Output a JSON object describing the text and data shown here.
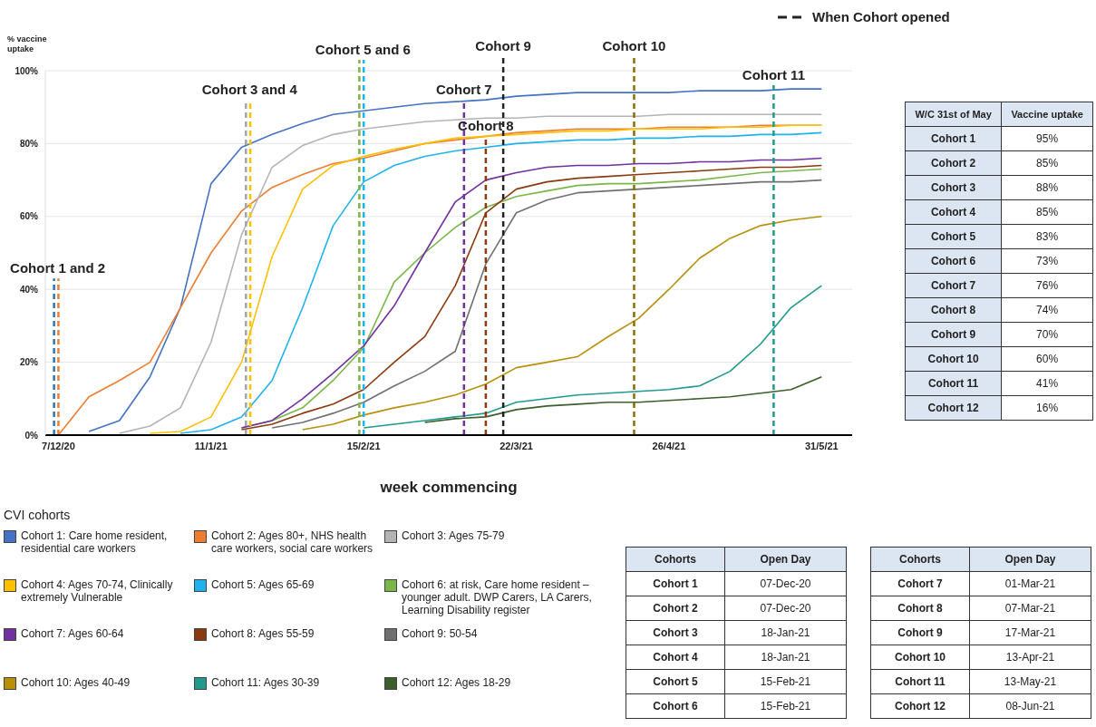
{
  "chart_data": {
    "type": "line",
    "ylabel": "% vaccine uptake",
    "xlabel": "week commencing",
    "legend_title": "CVI cohorts",
    "legend": "bottom",
    "grid": "y",
    "x": [
      "2020-12-07",
      "2020-12-14",
      "2020-12-21",
      "2020-12-28",
      "2021-01-04",
      "2021-01-11",
      "2021-01-18",
      "2021-01-25",
      "2021-02-01",
      "2021-02-08",
      "2021-02-15",
      "2021-02-22",
      "2021-03-01",
      "2021-03-08",
      "2021-03-15",
      "2021-03-22",
      "2021-03-29",
      "2021-04-05",
      "2021-04-12",
      "2021-04-19",
      "2021-04-26",
      "2021-05-03",
      "2021-05-10",
      "2021-05-17",
      "2021-05-24",
      "2021-05-31"
    ],
    "xlim": [
      "2020-12-04",
      "2021-06-07"
    ],
    "xticks": [
      {
        "value": "2020-12-07",
        "label": "7/12/20"
      },
      {
        "value": "2021-01-11",
        "label": "11/1/21"
      },
      {
        "value": "2021-02-15",
        "label": "15/2/21"
      },
      {
        "value": "2021-03-22",
        "label": "22/3/21"
      },
      {
        "value": "2021-04-26",
        "label": "26/4/21"
      },
      {
        "value": "2021-05-31",
        "label": "31/5/21"
      }
    ],
    "ylim": [
      0,
      100
    ],
    "yticks": [
      {
        "value": 0,
        "label": "0%"
      },
      {
        "value": 20,
        "label": "20%"
      },
      {
        "value": 40,
        "label": "40%"
      },
      {
        "value": 60,
        "label": "60%"
      },
      {
        "value": 80,
        "label": "80%"
      },
      {
        "value": 100,
        "label": "100%"
      }
    ],
    "series": [
      {
        "name": "Cohort 1: Care home resident, residential care workers",
        "color": "#4472c4",
        "values": [
          null,
          1,
          4,
          16,
          35,
          69,
          79,
          82.5,
          85.5,
          88,
          89,
          90,
          91,
          91.5,
          92,
          93,
          93.5,
          94,
          94,
          94,
          94,
          94.5,
          94.5,
          94.5,
          95,
          95
        ]
      },
      {
        "name": "Cohort 2: Ages 80+, NHS health care workers, social care workers",
        "color": "#ed7d31",
        "values": [
          0,
          10.5,
          15,
          20,
          35,
          50,
          61.5,
          68,
          71.5,
          74.5,
          76,
          78,
          80,
          81,
          82,
          83,
          83.5,
          84,
          84,
          84,
          84.5,
          84.5,
          84.5,
          85,
          85,
          85
        ]
      },
      {
        "name": "Cohort 3: Ages 75-79",
        "color": "#b4b4b4",
        "values": [
          null,
          null,
          0.5,
          2.5,
          7.5,
          25.5,
          55,
          73.5,
          79.5,
          82.5,
          84,
          85,
          86,
          86.5,
          87,
          87,
          87.5,
          87.5,
          87.5,
          87.5,
          88,
          88,
          88,
          88,
          88,
          88
        ]
      },
      {
        "name": "Cohort 4: Ages 70-74, Clinically extremely Vulnerable",
        "color": "#ffc000",
        "values": [
          null,
          null,
          null,
          0.5,
          1,
          5,
          20,
          49,
          67.5,
          74,
          76.5,
          78.5,
          80,
          81.5,
          82,
          82.5,
          83,
          83.5,
          83.5,
          84,
          84,
          84,
          84.5,
          84.5,
          85,
          85
        ]
      },
      {
        "name": "Cohort 5: Ages 65-69",
        "color": "#1fb2ec",
        "values": [
          null,
          null,
          null,
          null,
          0.5,
          1.5,
          5,
          15,
          35,
          57.5,
          69.5,
          74,
          76.5,
          78,
          79,
          80,
          80.5,
          81,
          81,
          81.5,
          81.5,
          82,
          82,
          82.5,
          82.5,
          83
        ]
      },
      {
        "name": "Cohort 6: at risk, Care home resident – younger adult. DWP Carers, LA Carers, Learning Disability register",
        "color": "#7ab648",
        "values": [
          null,
          null,
          null,
          null,
          null,
          null,
          2,
          4,
          7.5,
          15,
          24,
          42,
          50,
          57,
          62.5,
          65.5,
          67,
          68.5,
          69,
          69,
          69.5,
          70,
          71,
          72,
          72.5,
          73
        ]
      },
      {
        "name": "Cohort 7: Ages 60-64",
        "color": "#7030a0",
        "values": [
          null,
          null,
          null,
          null,
          null,
          null,
          2,
          4,
          10,
          17,
          24.5,
          35.5,
          50,
          64,
          70,
          72,
          73.5,
          74,
          74,
          74.5,
          74.5,
          75,
          75,
          75.5,
          75.5,
          76
        ]
      },
      {
        "name": "Cohort 8: Ages 55-59",
        "color": "#8b3a0f",
        "values": [
          null,
          null,
          null,
          null,
          null,
          null,
          1.5,
          3,
          6,
          8.5,
          12.5,
          20,
          27,
          41,
          61,
          67.5,
          69.5,
          70.5,
          71,
          71.5,
          72,
          72.5,
          73,
          73.5,
          73.5,
          74
        ]
      },
      {
        "name": "Cohort 9: 50-54",
        "color": "#707070",
        "values": [
          null,
          null,
          null,
          null,
          null,
          null,
          null,
          2,
          3.5,
          6,
          9,
          13.5,
          17.5,
          23,
          47,
          61,
          64.5,
          66.5,
          67,
          67.5,
          68,
          68.5,
          69,
          69.5,
          69.5,
          70
        ]
      },
      {
        "name": "Cohort 10: Ages 40-49",
        "color": "#b8900a",
        "values": [
          null,
          null,
          null,
          null,
          null,
          null,
          null,
          null,
          1.5,
          3,
          5.5,
          7.5,
          9,
          11,
          14,
          18.5,
          20,
          21.5,
          27,
          32,
          40,
          48.5,
          54,
          57.5,
          59,
          60
        ]
      },
      {
        "name": "Cohort 11: Ages 30-39",
        "color": "#1f9a8c",
        "values": [
          null,
          null,
          null,
          null,
          null,
          null,
          null,
          null,
          null,
          null,
          2,
          3,
          4,
          5,
          6,
          9,
          10,
          11,
          11.5,
          12,
          12.5,
          13.5,
          17.5,
          25,
          35,
          41
        ]
      },
      {
        "name": "Cohort 12: Ages 18-29",
        "color": "#3b5e2b",
        "values": [
          null,
          null,
          null,
          null,
          null,
          null,
          null,
          null,
          null,
          null,
          null,
          null,
          3.5,
          4.5,
          5,
          7,
          8,
          8.5,
          9,
          9,
          9.5,
          10,
          10.5,
          11.5,
          12.5,
          16
        ]
      }
    ],
    "ref_lines": [
      {
        "axis": "x",
        "value": "2020-12-06",
        "label": "Cohort 1 and 2",
        "color": "#2e75b6",
        "line_style": "dashed"
      },
      {
        "axis": "x",
        "value": "2020-12-07",
        "label": null,
        "color": "#ed7d31",
        "line_style": "dashed"
      },
      {
        "axis": "x",
        "value": "2021-01-19",
        "label": "Cohort 3 and 4",
        "color": "#a5a5a5",
        "line_style": "dashed"
      },
      {
        "axis": "x",
        "value": "2021-01-20",
        "label": null,
        "color": "#ffc000",
        "line_style": "dashed"
      },
      {
        "axis": "x",
        "value": "2021-02-14",
        "label": "Cohort 5 and 6",
        "color": "#7ab648",
        "line_style": "dashed"
      },
      {
        "axis": "x",
        "value": "2021-02-15",
        "label": null,
        "color": "#1fb2ec",
        "line_style": "dashed"
      },
      {
        "axis": "x",
        "value": "2021-03-10",
        "label": "Cohort 7",
        "color": "#7030a0",
        "line_style": "dashed"
      },
      {
        "axis": "x",
        "value": "2021-03-15",
        "label": "Cohort 8",
        "color": "#8b3a0f",
        "line_style": "dashed"
      },
      {
        "axis": "x",
        "value": "2021-03-19",
        "label": "Cohort 9",
        "color": "#222222",
        "line_style": "dashed"
      },
      {
        "axis": "x",
        "value": "2021-04-18",
        "label": "Cohort 10",
        "color": "#8a6d0b",
        "line_style": "dashed"
      },
      {
        "axis": "x",
        "value": "2021-05-20",
        "label": "Cohort 11",
        "color": "#1f9a8c",
        "line_style": "dashed"
      }
    ],
    "annotations": [
      "When Cohort opened",
      "W/C 31st of May",
      "Vaccine uptake",
      "Cohort 1",
      "95%",
      "Cohort 2",
      "85%",
      "Cohort 3",
      "88%",
      "Cohort 4",
      "85%",
      "Cohort 5",
      "83%",
      "Cohort 6",
      "73%",
      "Cohort 7",
      "76%",
      "Cohort 8",
      "74%",
      "Cohort 9",
      "70%",
      "Cohort 10",
      "60%",
      "Cohort 11",
      "41%",
      "Cohort 12",
      "16%",
      "Cohorts",
      "Open Day",
      "Cohort 1",
      "07-Dec-20",
      "Cohort 2",
      "07-Dec-20",
      "Cohort 3",
      "18-Jan-21",
      "Cohort 4",
      "18-Jan-21",
      "Cohort 5",
      "15-Feb-21",
      "Cohort 6",
      "15-Feb-21",
      "Cohorts",
      "Open Day",
      "Cohort 7",
      "01-Mar-21",
      "Cohort 8",
      "07-Mar-21",
      "Cohort 9",
      "17-Mar-21",
      "Cohort 10",
      "13-Apr-21",
      "Cohort 11",
      "13-May-21",
      "Cohort 12",
      "08-Jun-21"
    ]
  }
}
